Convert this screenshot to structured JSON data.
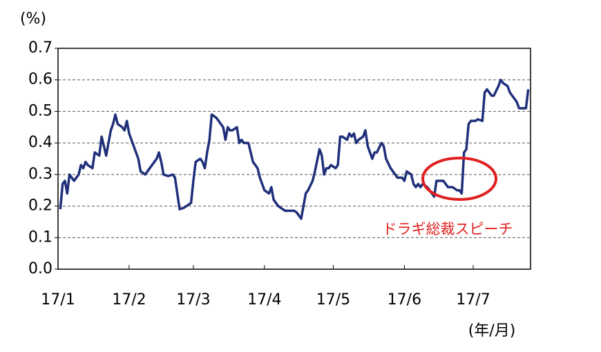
{
  "chart_data": {
    "type": "line",
    "y_label": "(%)",
    "x_label": "(年/月)",
    "annotation": "ドラギ総裁スピーチ",
    "xlim": [
      1,
      207
    ],
    "xticks": [
      {
        "value": 1,
        "label": "17/1"
      },
      {
        "value": 32,
        "label": "17/2"
      },
      {
        "value": 60,
        "label": "17/3"
      },
      {
        "value": 91,
        "label": "17/4"
      },
      {
        "value": 121,
        "label": "17/5"
      },
      {
        "value": 152,
        "label": "17/6"
      },
      {
        "value": 182,
        "label": "17/7"
      }
    ],
    "ylim": [
      0,
      0.7
    ],
    "yticks": [
      {
        "value": 0,
        "label": "0.0"
      },
      0.1,
      0.2,
      0.3,
      0.4,
      0.5,
      0.6,
      0.7
    ],
    "grid": true,
    "series": [
      {
        "color": "#1f2f7a",
        "x": [
          2,
          3,
          4,
          5,
          6,
          7,
          8,
          10,
          11,
          12,
          13,
          14,
          16,
          17,
          19,
          20,
          21,
          22,
          24,
          25,
          26,
          27,
          29,
          30,
          31,
          32,
          34,
          36,
          37,
          39,
          40,
          41,
          42,
          44,
          45,
          46,
          47,
          49,
          51,
          52,
          53,
          54,
          56,
          57,
          59,
          60,
          61,
          63,
          64,
          65,
          66,
          67,
          68,
          70,
          71,
          73,
          74,
          75,
          76,
          77,
          79,
          80,
          81,
          82,
          84,
          86,
          88,
          89,
          91,
          93,
          94,
          95,
          97,
          99,
          100,
          102,
          104,
          105,
          107,
          108,
          109,
          110,
          112,
          113,
          115,
          116,
          117,
          118,
          119,
          120,
          122,
          123,
          124,
          125,
          127,
          128,
          129,
          130,
          131,
          132,
          134,
          135,
          136,
          138,
          139,
          140,
          142,
          143,
          144,
          146,
          148,
          149,
          151,
          152,
          153,
          155,
          156,
          157,
          158,
          159,
          160,
          162,
          163,
          164,
          165,
          166,
          167,
          169,
          170,
          171,
          173,
          175,
          176,
          177,
          178,
          179,
          180,
          181,
          183,
          184,
          186,
          187,
          188,
          190,
          191,
          193,
          194,
          195,
          197,
          198,
          200,
          201,
          202,
          204,
          205,
          206
        ],
        "values": [
          0.19,
          0.27,
          0.28,
          0.24,
          0.3,
          0.29,
          0.28,
          0.3,
          0.33,
          0.32,
          0.34,
          0.33,
          0.32,
          0.37,
          0.36,
          0.42,
          0.39,
          0.36,
          0.44,
          0.46,
          0.49,
          0.46,
          0.45,
          0.44,
          0.47,
          0.43,
          0.39,
          0.35,
          0.31,
          0.3,
          0.31,
          0.32,
          0.33,
          0.35,
          0.37,
          0.34,
          0.3,
          0.295,
          0.3,
          0.29,
          0.24,
          0.19,
          0.195,
          0.2,
          0.21,
          0.28,
          0.34,
          0.35,
          0.34,
          0.32,
          0.37,
          0.41,
          0.49,
          0.48,
          0.47,
          0.45,
          0.41,
          0.45,
          0.44,
          0.44,
          0.45,
          0.4,
          0.41,
          0.4,
          0.4,
          0.34,
          0.32,
          0.29,
          0.25,
          0.24,
          0.26,
          0.22,
          0.2,
          0.19,
          0.185,
          0.185,
          0.185,
          0.18,
          0.16,
          0.2,
          0.24,
          0.25,
          0.28,
          0.31,
          0.38,
          0.36,
          0.3,
          0.32,
          0.32,
          0.33,
          0.32,
          0.33,
          0.42,
          0.42,
          0.41,
          0.43,
          0.42,
          0.43,
          0.4,
          0.41,
          0.42,
          0.44,
          0.39,
          0.35,
          0.37,
          0.37,
          0.4,
          0.39,
          0.35,
          0.32,
          0.3,
          0.29,
          0.29,
          0.28,
          0.31,
          0.3,
          0.27,
          0.26,
          0.27,
          0.26,
          0.27,
          0.26,
          0.25,
          0.24,
          0.23,
          0.28,
          0.28,
          0.28,
          0.27,
          0.26,
          0.26,
          0.25,
          0.25,
          0.24,
          0.37,
          0.38,
          0.46,
          0.47,
          0.47,
          0.475,
          0.47,
          0.56,
          0.57,
          0.55,
          0.55,
          0.58,
          0.6,
          0.59,
          0.58,
          0.56,
          0.54,
          0.53,
          0.51,
          0.51,
          0.51,
          0.57
        ]
      }
    ]
  }
}
